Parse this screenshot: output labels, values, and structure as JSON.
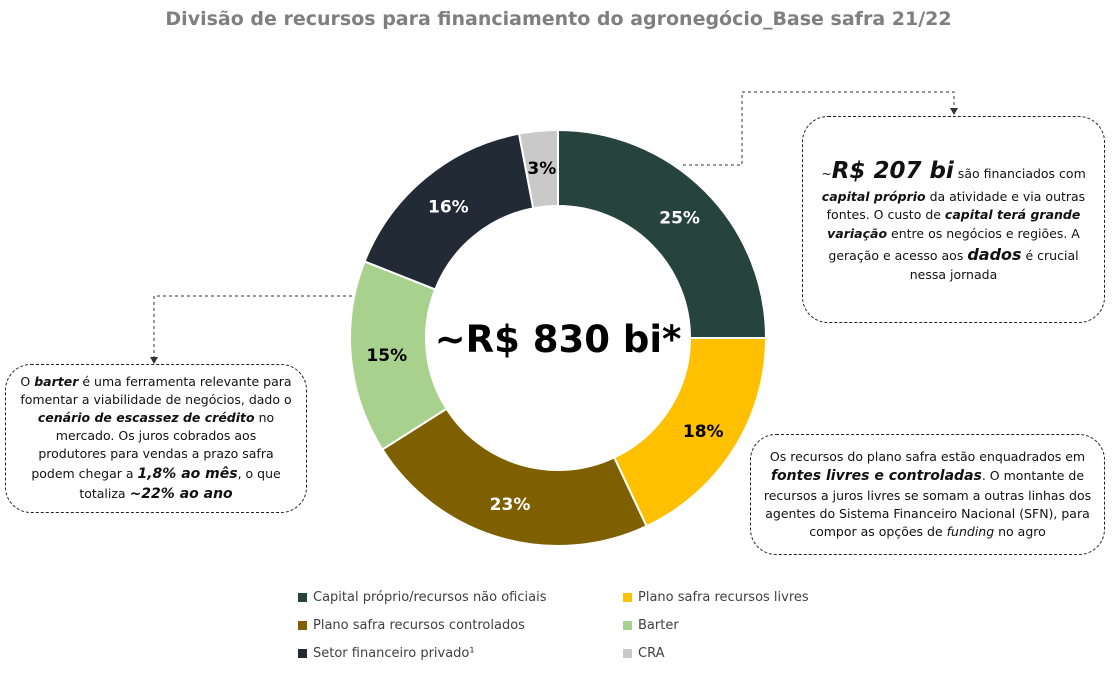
{
  "chart_data": {
    "type": "donut",
    "title": "Divisão de recursos para financiamento do agronegócio_Base safra 21/22",
    "center_label": "~R$ 830 bi*",
    "categories": [
      "Capital próprio/recursos não oficiais",
      "Plano safra recursos livres",
      "Plano safra recursos controlados",
      "Barter",
      "Setor financeiro privado¹",
      "CRA"
    ],
    "values": [
      25,
      18,
      23,
      15,
      16,
      3
    ],
    "value_labels": [
      "25%",
      "18%",
      "23%",
      "15%",
      "16%",
      "3%"
    ],
    "colors": [
      "#27433d",
      "#ffc000",
      "#7f6000",
      "#a9d18e",
      "#222a35",
      "#c9c9c9"
    ],
    "label_colors": [
      "#ffffff",
      "#000000",
      "#ffffff",
      "#000000",
      "#ffffff",
      "#000000"
    ],
    "legend_position": "bottom"
  },
  "notes": {
    "right_top": {
      "prefix": "~",
      "big": "R$ 207 bi",
      "t1": " são financiados com",
      "b1": "capital próprio",
      "t2": " da atividade e via outras fontes. O custo de ",
      "b2": "capital terá grande variação",
      "t3": " entre os negócios e regiões. A geração e acesso aos ",
      "b3": "dados",
      "t4": " é crucial nessa jornada"
    },
    "left": {
      "t1": "O ",
      "b1": "barter",
      "t2": " é uma ferramenta relevante para fomentar a viabilidade de negócios, dado o ",
      "b2": "cenário de escassez de crédito",
      "t3": " no mercado. Os juros cobrados aos produtores para vendas a prazo safra podem chegar a ",
      "b3": "1,8% ao mês",
      "t4": ", o que totaliza ",
      "b4": "~22% ao ano"
    },
    "right_bottom": {
      "t1": "Os recursos do plano safra estão enquadrados em ",
      "b1": "fontes livres e controladas",
      "t2": ". O montante de recursos a juros livres se somam a outras linhas dos agentes do Sistema Financeiro Nacional (SFN), para compor as opções de ",
      "i1": "funding",
      "t3": " no agro"
    }
  }
}
